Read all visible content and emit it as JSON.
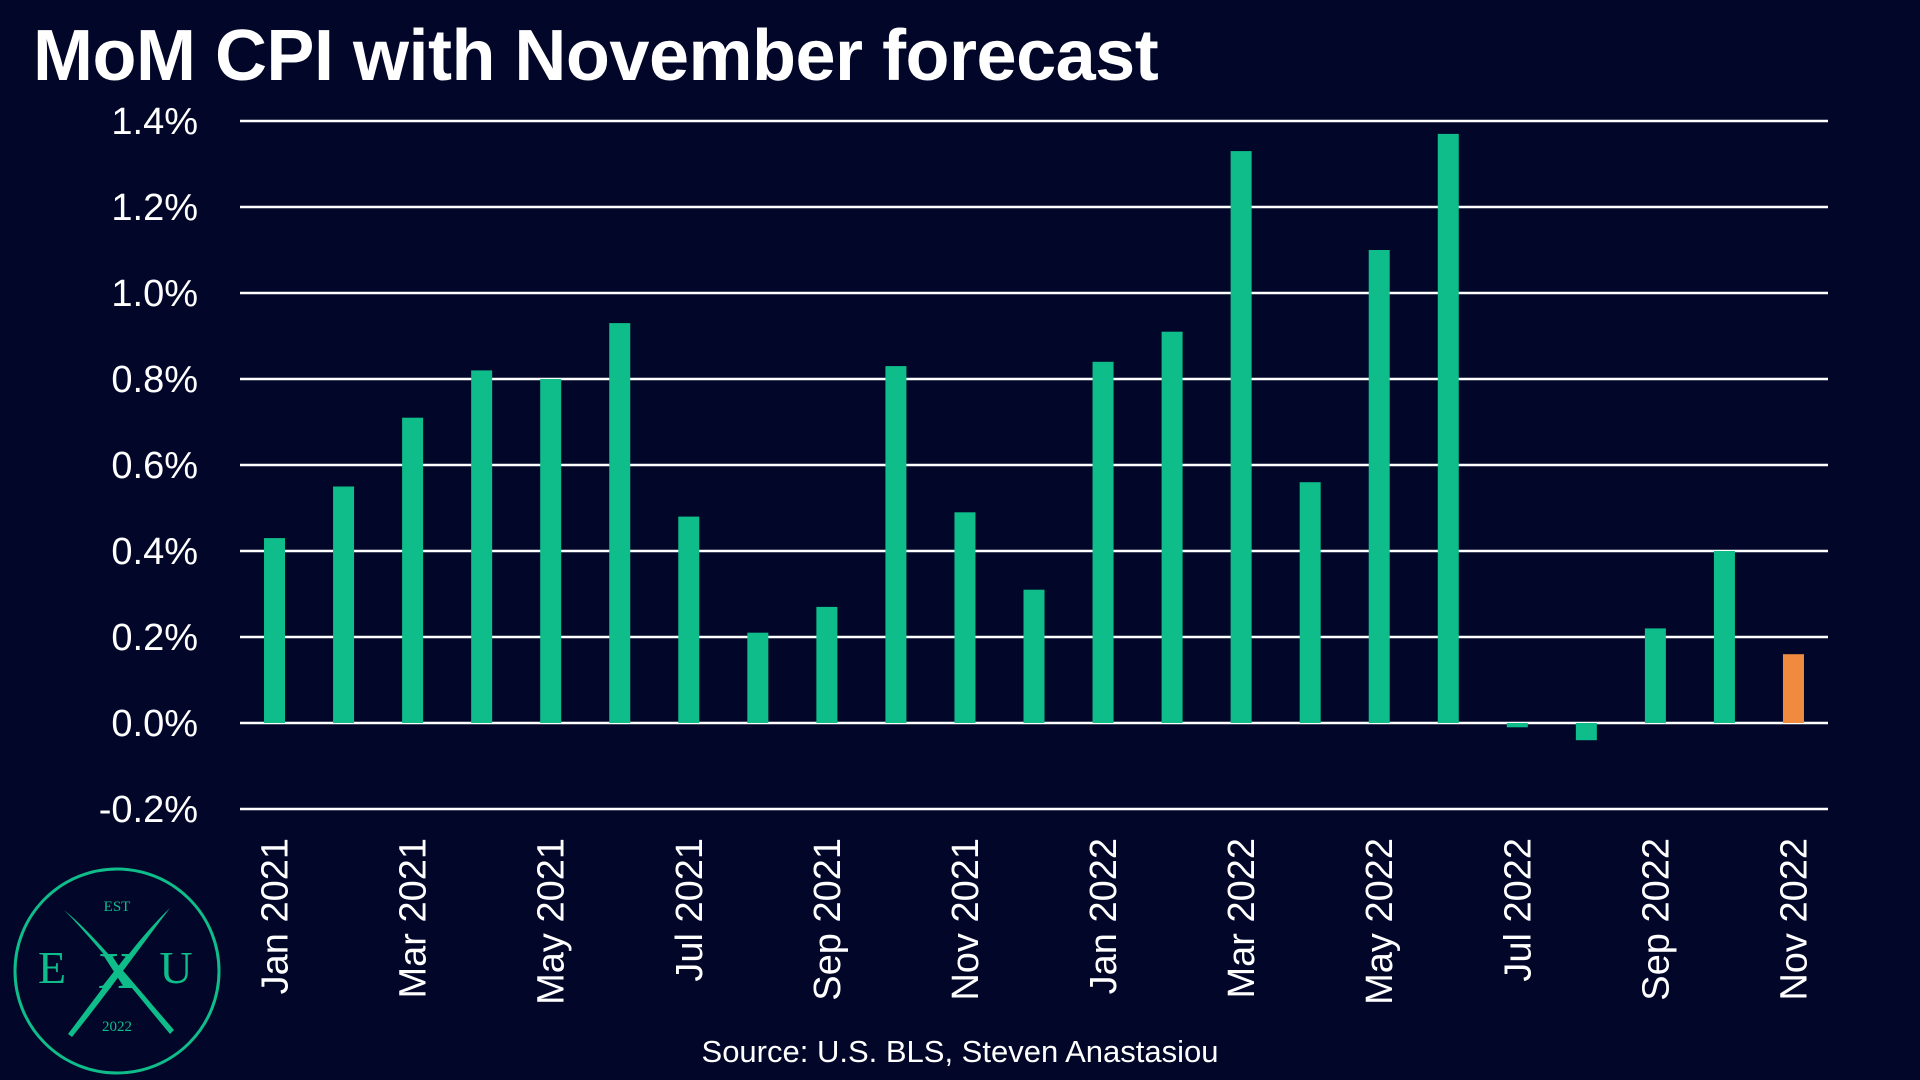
{
  "chart_data": {
    "type": "bar",
    "title": "MoM CPI with November forecast",
    "source": "Source: U.S. BLS, Steven Anastasiou",
    "categories": [
      "Jan 2021",
      "Feb 2021",
      "Mar 2021",
      "Apr 2021",
      "May 2021",
      "Jun 2021",
      "Jul 2021",
      "Aug 2021",
      "Sep 2021",
      "Oct 2021",
      "Nov 2021",
      "Dec 2021",
      "Jan 2022",
      "Feb 2022",
      "Mar 2022",
      "Apr 2022",
      "May 2022",
      "Jun 2022",
      "Jul 2022",
      "Aug 2022",
      "Sep 2022",
      "Oct 2022",
      "Nov 2022"
    ],
    "x_tick_labels": [
      "Jan 2021",
      "Mar 2021",
      "May 2021",
      "Jul 2021",
      "Sep 2021",
      "Nov 2021",
      "Jan 2022",
      "Mar 2022",
      "May 2022",
      "Jul 2022",
      "Sep 2022",
      "Nov 2022"
    ],
    "values": [
      0.43,
      0.55,
      0.71,
      0.82,
      0.8,
      0.93,
      0.48,
      0.21,
      0.27,
      0.83,
      0.49,
      0.31,
      0.84,
      0.91,
      1.33,
      0.56,
      1.1,
      1.37,
      -0.01,
      -0.04,
      0.22,
      0.4,
      0.16
    ],
    "forecast": [
      false,
      false,
      false,
      false,
      false,
      false,
      false,
      false,
      false,
      false,
      false,
      false,
      false,
      false,
      false,
      false,
      false,
      false,
      false,
      false,
      false,
      false,
      true
    ],
    "ylim": [
      -0.2,
      1.4
    ],
    "y_ticks": [
      -0.2,
      0.0,
      0.2,
      0.4,
      0.6,
      0.8,
      1.0,
      1.2,
      1.4
    ],
    "y_tick_labels": [
      "-0.2%",
      "0.0%",
      "0.2%",
      "0.4%",
      "0.6%",
      "0.8%",
      "1.0%",
      "1.2%",
      "1.4%"
    ],
    "grid": true,
    "colors": {
      "background": "#02072a",
      "bar": "#0ebd8a",
      "forecast_bar": "#ef8a3e",
      "gridline": "#ffffff",
      "text": "#ffffff"
    }
  },
  "logo": {
    "top_text": "EST",
    "left_letter": "E",
    "center_letter": "X",
    "right_letter": "U",
    "bottom_text": "2022",
    "color": "#0ebd8a"
  }
}
